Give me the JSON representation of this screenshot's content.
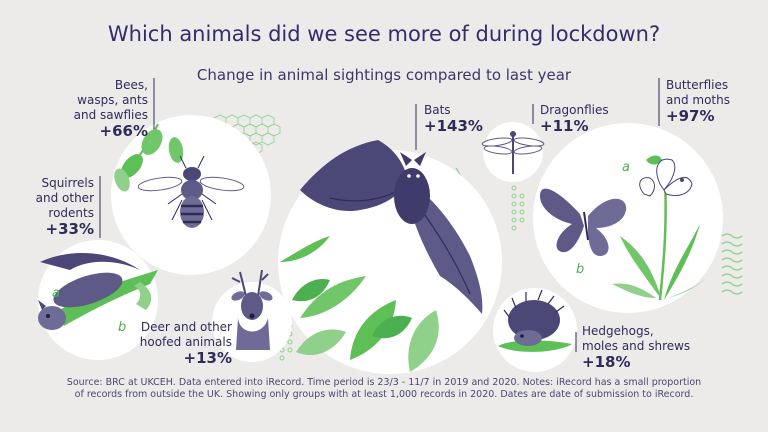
{
  "title": "Which animals did we see more of during lockdown?",
  "subtitle": "Change in animal sightings compared to last year",
  "colors": {
    "accent": "#5fbf57",
    "ink": "#312d6b",
    "circle": "#ffffff",
    "background": "#ecebea"
  },
  "chart_data": {
    "type": "bubble",
    "unit": "%",
    "categories": [
      "Bees, wasps, ants and sawflies",
      "Squirrels and other rodents",
      "Deer and other hoofed animals",
      "Bats",
      "Dragonflies",
      "Butterflies and moths",
      "Hedgehogs, moles and shrews"
    ],
    "values": [
      66,
      33,
      13,
      143,
      11,
      97,
      18
    ]
  },
  "labels": {
    "bees": {
      "name_lines": [
        "Bees,",
        "wasps, ants",
        "and sawflies"
      ],
      "value": "+66%"
    },
    "squirrels": {
      "name_lines": [
        "Squirrels",
        "and other",
        "rodents"
      ],
      "value": "+33%"
    },
    "deer": {
      "name_lines": [
        "Deer and other",
        "hoofed animals"
      ],
      "value": "+13%"
    },
    "bats": {
      "name_lines": [
        "Bats"
      ],
      "value": "+143%"
    },
    "dragonflies": {
      "name_lines": [
        "Dragonflies"
      ],
      "value": "+11%"
    },
    "butterflies": {
      "name_lines": [
        "Butterflies",
        "and moths"
      ],
      "value": "+97%"
    },
    "hedgehogs": {
      "name_lines": [
        "Hedgehogs,",
        "moles and shrews"
      ],
      "value": "+18%"
    }
  },
  "tags": {
    "a": "a",
    "b": "b"
  },
  "icons": [
    "bee-icon",
    "squirrel-icon",
    "deer-icon",
    "bat-icon",
    "dragonfly-icon",
    "butterfly-icon",
    "moth-icon",
    "hedgehog-icon",
    "plant-icon"
  ],
  "source_lines": [
    "Source: BRC at UKCEH. Data entered into iRecord. Time period is 23/3 - 11/7 in 2019 and 2020. Notes: iRecord has a small proportion",
    "of records from outside the UK. Showing only groups with at least 1,000 records in 2020. Dates are date of submission to iRecord."
  ]
}
